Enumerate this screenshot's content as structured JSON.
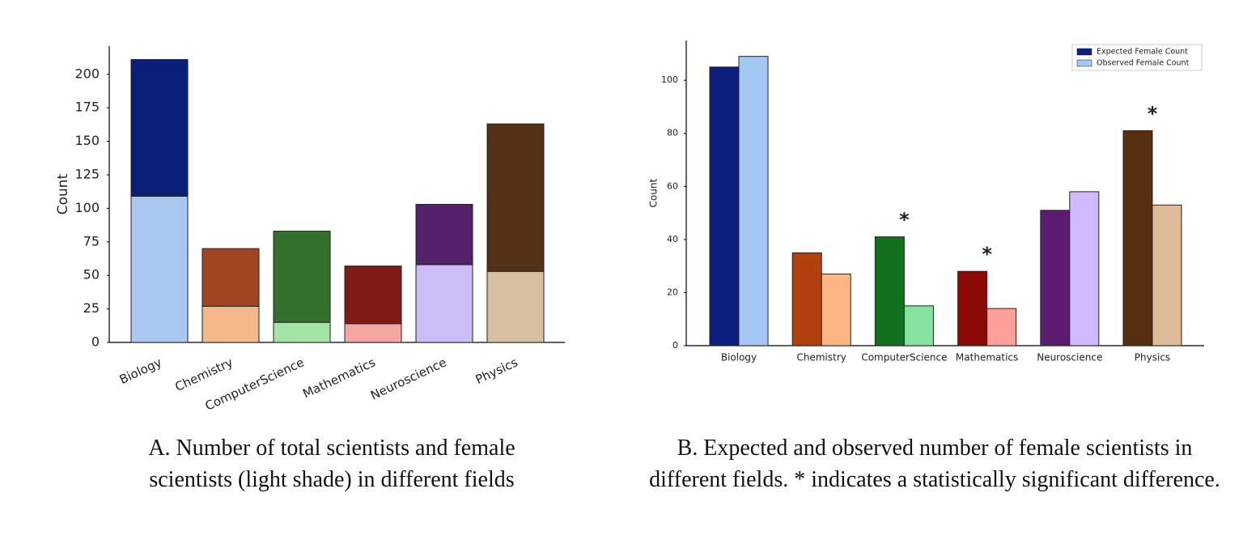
{
  "chart_data": [
    {
      "type": "bar",
      "stacked": true,
      "ylabel": "Count",
      "categories": [
        "Biology",
        "Chemistry",
        "ComputerScience",
        "Mathematics",
        "Neuroscience",
        "Physics"
      ],
      "series": [
        {
          "colors": [
            "#a9c8f0",
            "#f4b88a",
            "#a4e4a4",
            "#f4a5a0",
            "#cbbcf6",
            "#d8bfa0"
          ],
          "values": [
            109,
            27,
            15,
            14,
            58,
            53
          ]
        },
        {
          "colors": [
            "#0a1f78",
            "#a04522",
            "#32702c",
            "#801c15",
            "#53216a",
            "#533117"
          ],
          "values": [
            102,
            43,
            68,
            43,
            45,
            110
          ]
        }
      ],
      "ylim": [
        0,
        221
      ],
      "yticks": [
        0,
        25,
        50,
        75,
        100,
        125,
        150,
        175,
        200
      ],
      "grid": false,
      "caption": "A. Number of total scientists and female scientists (light shade) in different fields"
    },
    {
      "type": "bar",
      "stacked": false,
      "ylabel": "Count",
      "categories": [
        "Biology",
        "Chemistry",
        "ComputerScience",
        "Mathematics",
        "Neuroscience",
        "Physics"
      ],
      "series": [
        {
          "name": "Expected Female Count",
          "color": "#0c1f7e",
          "colors": [
            "#0c1f7e",
            "#b0400e",
            "#12711e",
            "#8b0a06",
            "#5b1c6f",
            "#552f10"
          ],
          "values": [
            105,
            35,
            41,
            28,
            51,
            81
          ]
        },
        {
          "name": "Observed Female Count",
          "color": "#a4c8f4",
          "colors": [
            "#a4c8f4",
            "#ffb582",
            "#87e19f",
            "#ff9f9a",
            "#d1b9ff",
            "#debc9a"
          ],
          "values": [
            109,
            27,
            15,
            14,
            58,
            53
          ]
        }
      ],
      "annotations": [
        {
          "text": "*",
          "category": "ComputerScience"
        },
        {
          "text": "*",
          "category": "Mathematics"
        },
        {
          "text": "*",
          "category": "Physics"
        }
      ],
      "ylim": [
        0,
        115
      ],
      "yticks": [
        0,
        20,
        40,
        60,
        80,
        100
      ],
      "grid": false,
      "legend": "upper right",
      "caption": "B. Expected and observed number of female scientists in different fields. * indicates a statistically significant difference."
    }
  ]
}
